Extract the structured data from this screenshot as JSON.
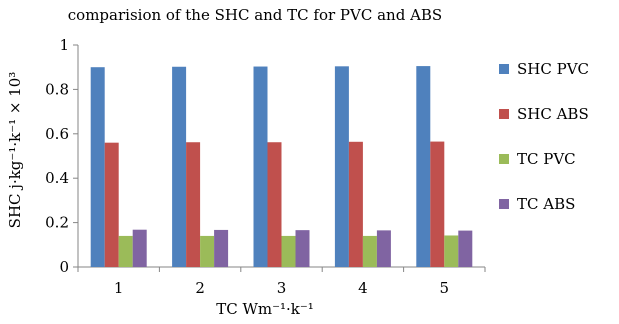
{
  "chart_data": {
    "type": "bar",
    "title": "comparision of the SHC and TC for PVC and ABS",
    "xlabel": "TC Wm⁻¹·k⁻¹",
    "ylabel": "SHC j·kg⁻¹·k⁻¹ × 10³",
    "categories": [
      "1",
      "2",
      "3",
      "4",
      "5"
    ],
    "ylim": [
      0,
      1
    ],
    "yticks": [
      "0",
      "0.2",
      "0.4",
      "0.6",
      "0.8",
      "1"
    ],
    "grid": false,
    "legend_position": "right",
    "series": [
      {
        "name": "SHC PVC",
        "color": "#4f81bd",
        "values": [
          0.9,
          0.902,
          0.903,
          0.904,
          0.905
        ]
      },
      {
        "name": "SHC ABS",
        "color": "#c0504d",
        "values": [
          0.56,
          0.562,
          0.562,
          0.564,
          0.565
        ]
      },
      {
        "name": "TC PVC",
        "color": "#9bbb59",
        "values": [
          0.14,
          0.14,
          0.14,
          0.14,
          0.142
        ]
      },
      {
        "name": "TC ABS",
        "color": "#8064a2",
        "values": [
          0.168,
          0.167,
          0.166,
          0.165,
          0.164
        ]
      }
    ]
  }
}
